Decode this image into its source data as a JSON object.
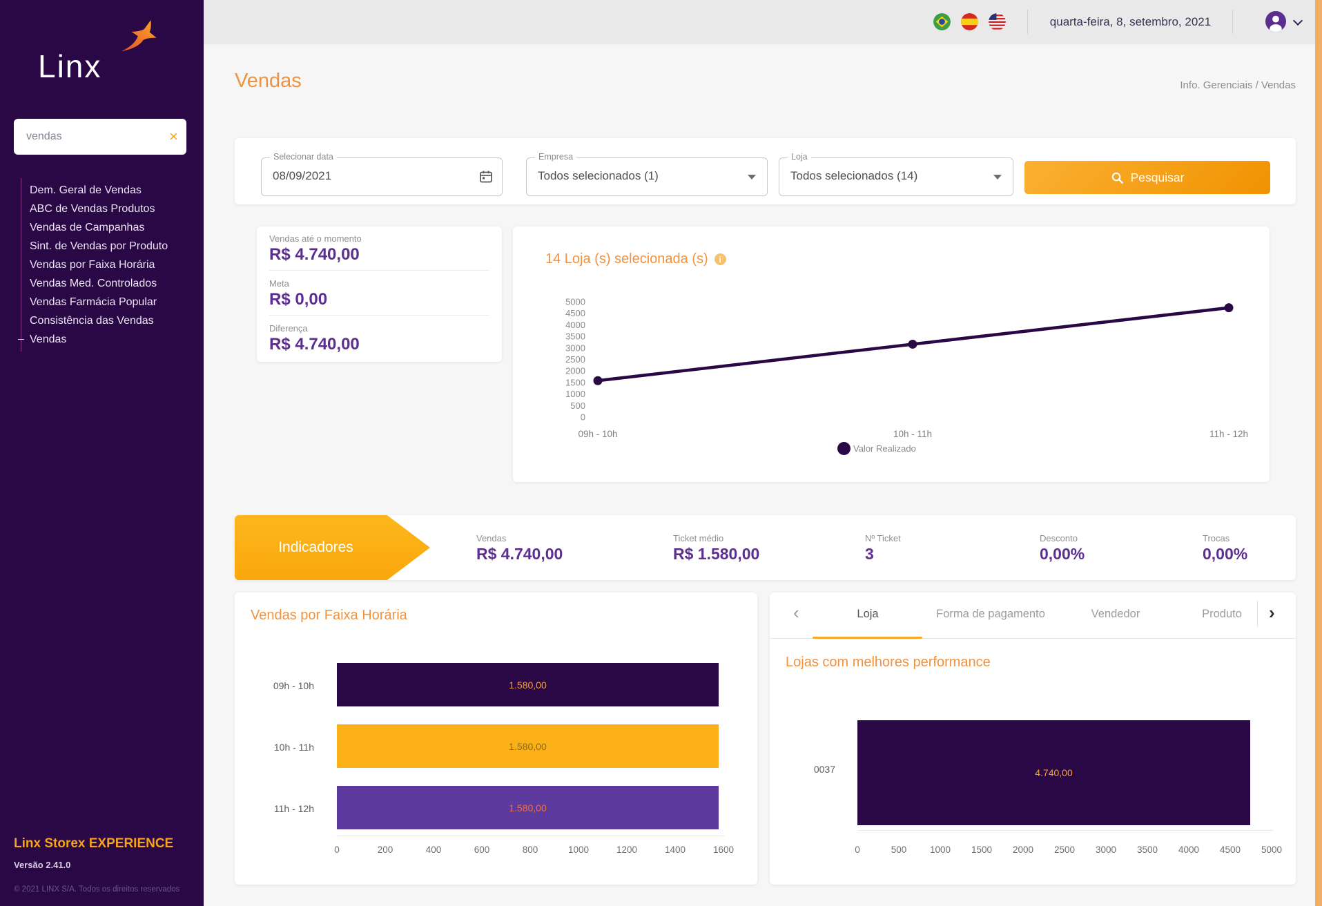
{
  "sidebar": {
    "logo_text": "Linx",
    "search": {
      "value": "vendas",
      "close_icon": "×"
    },
    "menu": [
      {
        "label": "Dem. Geral de Vendas"
      },
      {
        "label": "ABC de Vendas Produtos"
      },
      {
        "label": "Vendas de Campanhas"
      },
      {
        "label": "Sint. de Vendas por Produto"
      },
      {
        "label": "Vendas por Faixa Horária"
      },
      {
        "label": "Vendas Med. Controlados"
      },
      {
        "label": "Vendas Farmácia Popular"
      },
      {
        "label": "Consistência das Vendas"
      },
      {
        "label": "Vendas"
      }
    ],
    "footer": {
      "brand": "Linx Storex EXPERIENCE",
      "version": "Versão 2.41.0",
      "copyright": "© 2021 LINX S/A. Todos os direitos reservados"
    }
  },
  "topbar": {
    "date": "quarta-feira, 8, setembro, 2021",
    "flags": [
      "brazil-flag",
      "spain-flag",
      "usa-flag"
    ]
  },
  "page": {
    "title": "Vendas",
    "breadcrumb": "Info. Gerenciais / Vendas"
  },
  "filters": {
    "date": {
      "label": "Selecionar data",
      "value": "08/09/2021"
    },
    "empresa": {
      "label": "Empresa",
      "value": "Todos selecionados (1)"
    },
    "loja": {
      "label": "Loja",
      "value": "Todos selecionados (14)"
    },
    "search_button": "Pesquisar"
  },
  "kpis": [
    {
      "label": "Vendas até o momento",
      "value": "R$ 4.740,00"
    },
    {
      "label": "Meta",
      "value": "R$ 0,00"
    },
    {
      "label": "Diferença",
      "value": "R$ 4.740,00"
    }
  ],
  "indicators": {
    "banner": "Indicadores",
    "items": [
      {
        "label": "Vendas",
        "value": "R$ 4.740,00"
      },
      {
        "label": "Ticket médio",
        "value": "R$ 1.580,00"
      },
      {
        "label": "Nº Ticket",
        "value": "3"
      },
      {
        "label": "Desconto",
        "value": "0,00%"
      },
      {
        "label": "Trocas",
        "value": "0,00%"
      }
    ]
  },
  "tabs": {
    "items": [
      "Loja",
      "Forma de pagamento",
      "Vendedor",
      "Produto"
    ],
    "active": "Loja"
  },
  "chart_data": [
    {
      "type": "line",
      "title": "14 Loja (s) selecionada (s)",
      "categories": [
        "09h - 10h",
        "10h - 11h",
        "11h - 12h"
      ],
      "series": [
        {
          "name": "Valor Realizado",
          "values": [
            1580,
            3160,
            4740
          ]
        }
      ],
      "ylim": [
        0,
        5000
      ],
      "ytick_step": 500,
      "grid": false,
      "legend_position": "bottom",
      "color": "#2A0845"
    },
    {
      "type": "bar",
      "orientation": "horizontal",
      "title": "Vendas por Faixa Horária",
      "categories": [
        "09h - 10h",
        "10h - 11h",
        "11h - 12h"
      ],
      "values": [
        1580,
        1580,
        1580
      ],
      "value_labels": [
        "1.580,00",
        "1.580,00",
        "1.580,00"
      ],
      "xlim": [
        0,
        1600
      ],
      "xtick_step": 200,
      "bar_colors": [
        "#2A0845",
        "#FBB017",
        "#5D3A9D"
      ],
      "label_colors": [
        "#F6A13C",
        "#8D6A1F",
        "#EF7040"
      ]
    },
    {
      "type": "bar",
      "orientation": "horizontal",
      "title": "Lojas com melhores performance",
      "categories": [
        "0037"
      ],
      "values": [
        4740
      ],
      "value_labels": [
        "4.740,00"
      ],
      "xlim": [
        0,
        5000
      ],
      "xtick_step": 500,
      "bar_colors": [
        "#2A0845"
      ],
      "label_colors": [
        "#F6A13C"
      ]
    }
  ],
  "colors": {
    "accent_orange": "#F0923E",
    "amber": "#FBB017",
    "value_purple": "#5C2E91",
    "sidebar_purple": "#2A0845",
    "bar_purple": "#5D3A9D"
  }
}
